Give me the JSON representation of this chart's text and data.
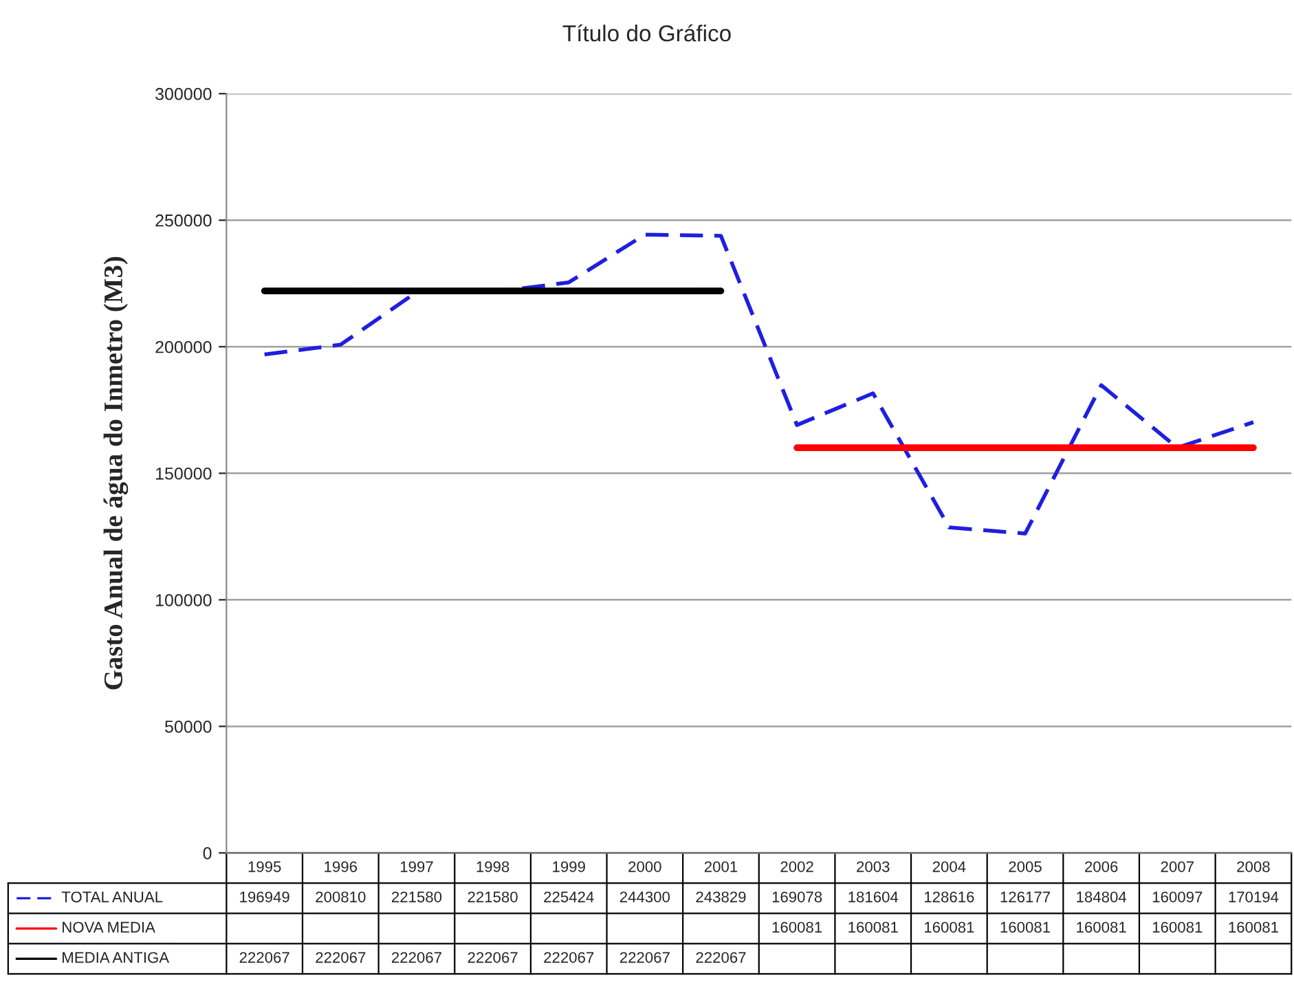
{
  "chart_data": {
    "type": "line",
    "title": "Título do Gráfico",
    "ylabel": "Gasto Anual de água do Inmetro (M3)",
    "categories": [
      "1995",
      "1996",
      "1997",
      "1998",
      "1999",
      "2000",
      "2001",
      "2002",
      "2003",
      "2004",
      "2005",
      "2006",
      "2007",
      "2008"
    ],
    "series": [
      {
        "name": "TOTAL ANUAL",
        "color": "#1f1fe0",
        "line_style": "dashed",
        "values": [
          196949,
          200810,
          221580,
          221580,
          225424,
          244300,
          243829,
          169078,
          181604,
          128616,
          126177,
          184804,
          160097,
          170194
        ]
      },
      {
        "name": "NOVA MEDIA",
        "color": "#ff0000",
        "line_style": "solid",
        "values": [
          null,
          null,
          null,
          null,
          null,
          null,
          null,
          160081,
          160081,
          160081,
          160081,
          160081,
          160081,
          160081
        ]
      },
      {
        "name": "MEDIA ANTIGA",
        "color": "#000000",
        "line_style": "solid",
        "values": [
          222067,
          222067,
          222067,
          222067,
          222067,
          222067,
          222067,
          null,
          null,
          null,
          null,
          null,
          null,
          null
        ]
      }
    ],
    "ylim": [
      0,
      300000
    ],
    "yticks": [
      0,
      50000,
      100000,
      150000,
      200000,
      250000,
      300000
    ],
    "grid": "y",
    "legend": "bottom",
    "data_labels": true,
    "marker": "none"
  }
}
